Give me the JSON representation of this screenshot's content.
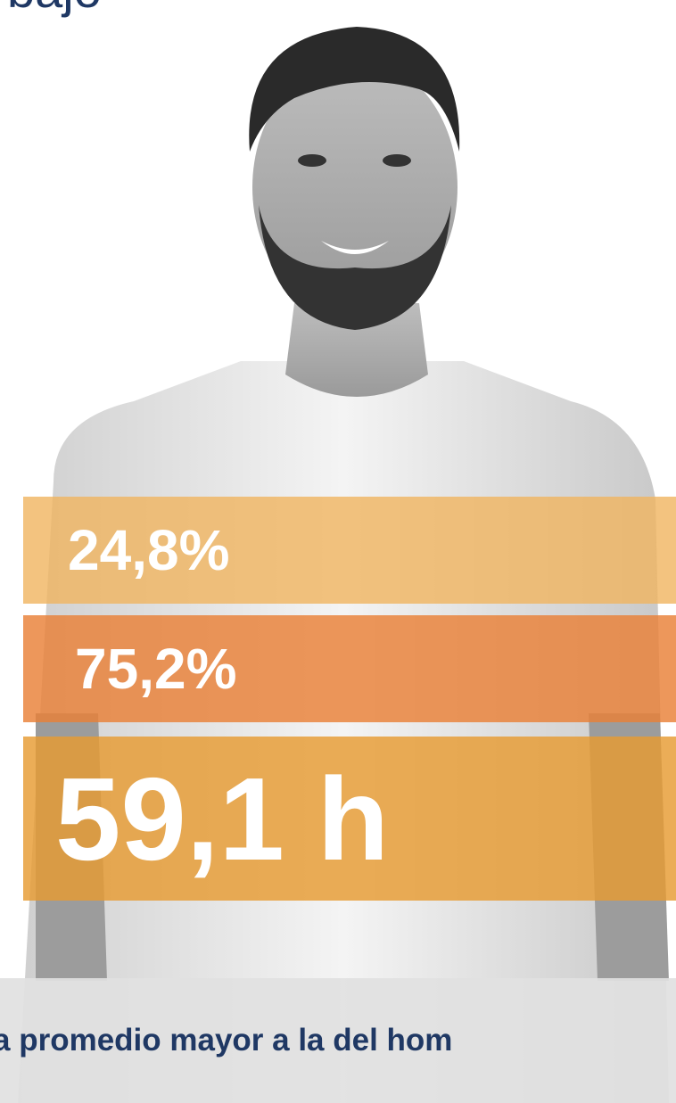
{
  "header": {
    "title": "bajo"
  },
  "stats": [
    {
      "value": "24,8%"
    },
    {
      "value": "75,2%"
    },
    {
      "value": "59,1 h"
    }
  ],
  "footer": {
    "text": "a promedio mayor a la del hom"
  }
}
